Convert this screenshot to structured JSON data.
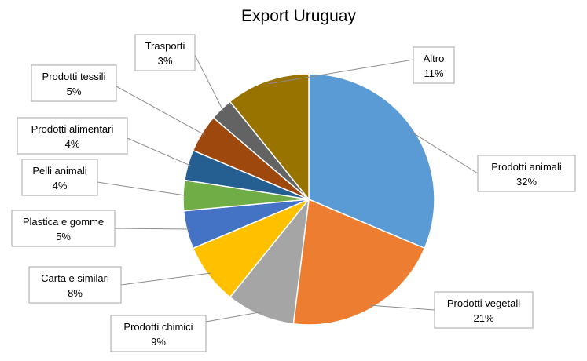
{
  "chart_data": {
    "type": "pie",
    "title": "Export Uruguay",
    "legend": "none",
    "slices": [
      {
        "name": "Prodotti animali",
        "value": 32,
        "label": "32%",
        "color": "#5B9BD5"
      },
      {
        "name": "Prodotti vegetali",
        "value": 21,
        "label": "21%",
        "color": "#ED7D31"
      },
      {
        "name": "Prodotti chimici",
        "value": 9,
        "label": "9%",
        "color": "#A5A5A5"
      },
      {
        "name": "Carta e similari",
        "value": 8,
        "label": "8%",
        "color": "#FFC000"
      },
      {
        "name": "Plastica e gomme",
        "value": 5,
        "label": "5%",
        "color": "#4472C4"
      },
      {
        "name": "Pelli animali",
        "value": 4,
        "label": "4%",
        "color": "#70AD47"
      },
      {
        "name": "Prodotti alimentari",
        "value": 4,
        "label": "4%",
        "color": "#255E91"
      },
      {
        "name": "Prodotti tessili",
        "value": 5,
        "label": "5%",
        "color": "#9E480E"
      },
      {
        "name": "Trasporti",
        "value": 3,
        "label": "3%",
        "color": "#636363"
      },
      {
        "name": "Altro",
        "value": 11,
        "label": "11%",
        "color": "#997300"
      }
    ]
  }
}
